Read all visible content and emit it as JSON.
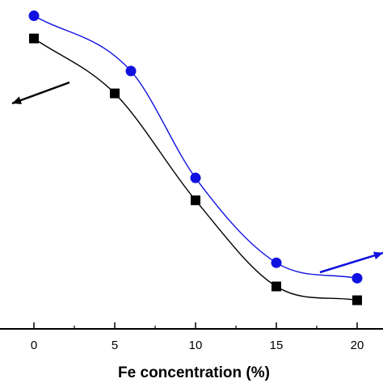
{
  "chart_data": {
    "type": "line",
    "xlabel": "Fe concentration (%)",
    "ylabel": "",
    "xlim": [
      -2.1,
      21.6
    ],
    "ylim": [
      0,
      1
    ],
    "x_ticks": [
      "0",
      "5",
      "10",
      "15",
      "20"
    ],
    "grid": false,
    "legend": "none",
    "series": [
      {
        "marker": "square",
        "color": "#000000",
        "axis": "left",
        "x": [
          0,
          5,
          10,
          15,
          20
        ],
        "y": [
          0.883,
          0.716,
          0.391,
          0.129,
          0.087
        ]
      },
      {
        "marker": "circle",
        "color": "#1010e0",
        "axis": "right",
        "x": [
          0,
          6,
          10,
          15,
          20
        ],
        "y": [
          0.952,
          0.784,
          0.459,
          0.201,
          0.154
        ]
      }
    ],
    "annotations": [
      {
        "type": "arrow",
        "direction": "left",
        "series_axis": "left",
        "color": "#000000"
      },
      {
        "type": "arrow",
        "direction": "right",
        "series_axis": "right",
        "color": "#1010e0"
      }
    ]
  }
}
